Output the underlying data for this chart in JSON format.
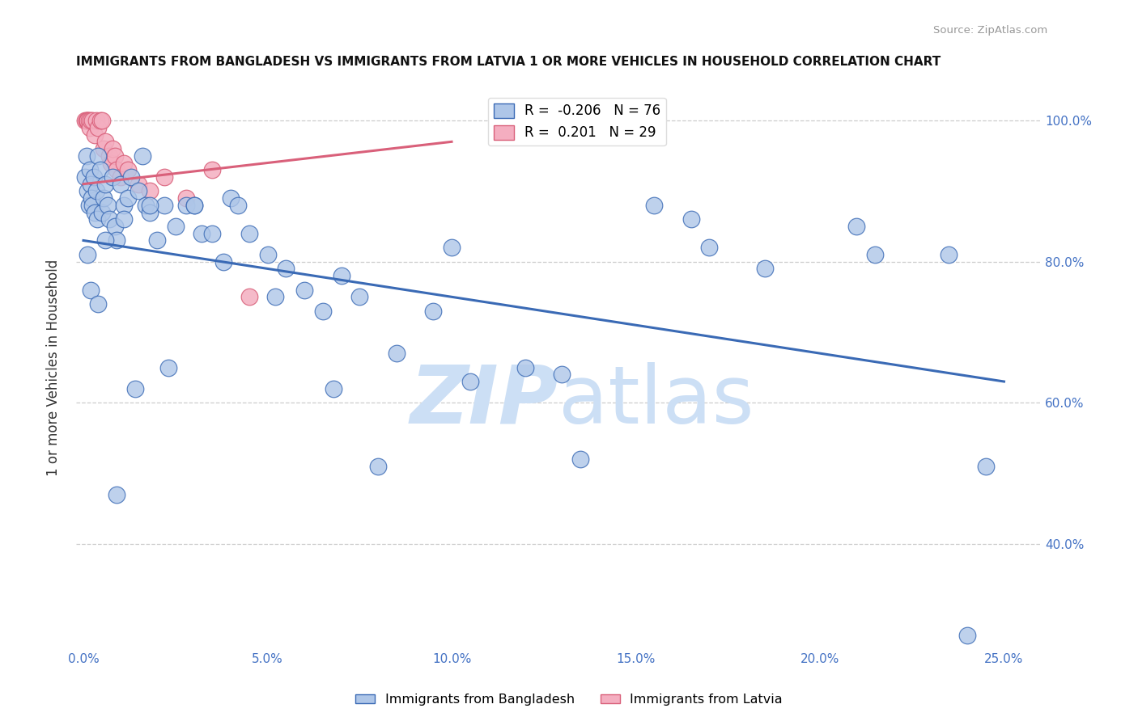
{
  "title": "IMMIGRANTS FROM BANGLADESH VS IMMIGRANTS FROM LATVIA 1 OR MORE VEHICLES IN HOUSEHOLD CORRELATION CHART",
  "source": "Source: ZipAtlas.com",
  "ylabel": "1 or more Vehicles in Household",
  "ylim": [
    25,
    105
  ],
  "xlim": [
    -0.2,
    26
  ],
  "bangladesh_R": -0.206,
  "bangladesh_N": 76,
  "latvia_R": 0.201,
  "latvia_N": 29,
  "bangladesh_color": "#aec6e8",
  "latvia_color": "#f4aec0",
  "bangladesh_line_color": "#3a6ab5",
  "latvia_line_color": "#d9607a",
  "watermark_color": "#ccdff5",
  "background_color": "#ffffff",
  "grid_color": "#cccccc",
  "axis_color": "#4472c4",
  "bd_line_x": [
    0,
    25
  ],
  "bd_line_y": [
    83,
    63
  ],
  "lv_line_x": [
    0,
    10
  ],
  "lv_line_y": [
    91,
    97
  ],
  "bangladesh_x": [
    0.05,
    0.08,
    0.12,
    0.15,
    0.18,
    0.2,
    0.22,
    0.25,
    0.28,
    0.3,
    0.35,
    0.38,
    0.4,
    0.45,
    0.5,
    0.55,
    0.6,
    0.65,
    0.7,
    0.8,
    0.85,
    0.9,
    1.0,
    1.1,
    1.2,
    1.3,
    1.5,
    1.6,
    1.7,
    1.8,
    2.0,
    2.2,
    2.5,
    2.8,
    3.0,
    3.2,
    3.5,
    3.8,
    4.0,
    4.5,
    5.0,
    5.5,
    6.0,
    6.5,
    7.0,
    7.5,
    8.5,
    9.5,
    10.5,
    12.0,
    13.5,
    15.5,
    16.5,
    18.5,
    21.0,
    23.5,
    0.1,
    0.2,
    0.4,
    0.6,
    0.9,
    1.1,
    1.4,
    1.8,
    2.3,
    3.0,
    4.2,
    5.2,
    6.8,
    8.0,
    10.0,
    13.0,
    17.0,
    21.5,
    24.0,
    24.5
  ],
  "bangladesh_y": [
    92,
    95,
    90,
    88,
    93,
    91,
    89,
    88,
    92,
    87,
    90,
    86,
    95,
    93,
    87,
    89,
    91,
    88,
    86,
    92,
    85,
    83,
    91,
    88,
    89,
    92,
    90,
    95,
    88,
    87,
    83,
    88,
    85,
    88,
    88,
    84,
    84,
    80,
    89,
    84,
    81,
    79,
    76,
    73,
    78,
    75,
    67,
    73,
    63,
    65,
    52,
    88,
    86,
    79,
    85,
    81,
    81,
    76,
    74,
    83,
    47,
    86,
    62,
    88,
    65,
    88,
    88,
    75,
    62,
    51,
    82,
    64,
    82,
    81,
    27,
    51
  ],
  "latvia_x": [
    0.05,
    0.08,
    0.1,
    0.12,
    0.15,
    0.18,
    0.2,
    0.25,
    0.3,
    0.35,
    0.4,
    0.45,
    0.5,
    0.55,
    0.6,
    0.7,
    0.75,
    0.8,
    0.85,
    0.9,
    1.0,
    1.1,
    1.2,
    1.5,
    1.8,
    2.2,
    2.8,
    3.5,
    4.5
  ],
  "latvia_y": [
    100,
    100,
    100,
    100,
    100,
    99,
    100,
    100,
    98,
    100,
    99,
    100,
    100,
    96,
    97,
    95,
    94,
    96,
    95,
    93,
    92,
    94,
    93,
    91,
    90,
    92,
    89,
    93,
    75
  ]
}
